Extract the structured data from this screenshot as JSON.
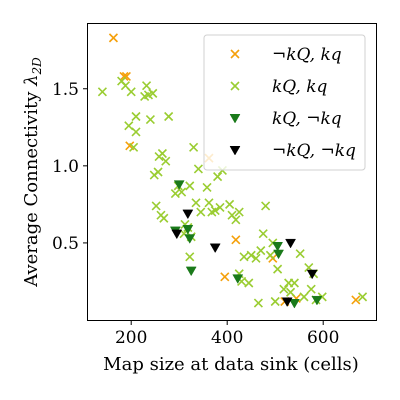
{
  "chart_data": {
    "type": "scatter",
    "xlabel": "Map size at data sink (cells)",
    "ylabel": "Average Connectivity λ2D",
    "xlim": [
      110,
      710
    ],
    "ylim": [
      0.0,
      1.92
    ],
    "xticks": [
      200,
      400,
      600
    ],
    "yticks": [
      0.5,
      1.0,
      1.5
    ],
    "xtick_labels": [
      "200",
      "400",
      "600"
    ],
    "ytick_labels": [
      "0.5",
      "1.0",
      "1.5"
    ],
    "legend_position": "top-right",
    "series": [
      {
        "name": "¬kQ, kq",
        "marker": "x",
        "color": "#f5a00a",
        "points": [
          [
            163,
            1.83
          ],
          [
            185,
            1.58
          ],
          [
            190,
            1.58
          ],
          [
            197,
            1.13
          ],
          [
            362,
            1.05
          ],
          [
            395,
            0.28
          ],
          [
            418,
            0.52
          ],
          [
            495,
            0.4
          ],
          [
            520,
            0.12
          ],
          [
            544,
            0.14
          ],
          [
            668,
            0.13
          ]
        ]
      },
      {
        "name": "kQ, kq",
        "marker": "x",
        "color": "#9acd32",
        "points": [
          [
            140,
            1.48
          ],
          [
            180,
            1.55
          ],
          [
            188,
            1.52
          ],
          [
            200,
            1.48
          ],
          [
            205,
            1.12
          ],
          [
            195,
            1.26
          ],
          [
            210,
            1.32
          ],
          [
            210,
            1.22
          ],
          [
            228,
            1.45
          ],
          [
            232,
            1.52
          ],
          [
            236,
            1.46
          ],
          [
            245,
            1.47
          ],
          [
            240,
            1.3
          ],
          [
            258,
            1.06
          ],
          [
            265,
            1.08
          ],
          [
            272,
            1.03
          ],
          [
            278,
            1.32
          ],
          [
            248,
            0.94
          ],
          [
            256,
            0.96
          ],
          [
            262,
            0.68
          ],
          [
            268,
            0.66
          ],
          [
            252,
            0.74
          ],
          [
            292,
            0.82
          ],
          [
            298,
            0.87
          ],
          [
            305,
            0.83
          ],
          [
            312,
            0.62
          ],
          [
            318,
            0.6
          ],
          [
            322,
            0.87
          ],
          [
            310,
            0.56
          ],
          [
            322,
            0.41
          ],
          [
            325,
            0.54
          ],
          [
            330,
            1.12
          ],
          [
            340,
            0.98
          ],
          [
            335,
            0.76
          ],
          [
            345,
            0.7
          ],
          [
            358,
            0.86
          ],
          [
            362,
            0.76
          ],
          [
            368,
            0.7
          ],
          [
            375,
            0.71
          ],
          [
            380,
            0.93
          ],
          [
            390,
            0.97
          ],
          [
            385,
            0.73
          ],
          [
            405,
            0.75
          ],
          [
            410,
            0.68
          ],
          [
            418,
            0.65
          ],
          [
            425,
            0.7
          ],
          [
            425,
            0.3
          ],
          [
            430,
            0.25
          ],
          [
            435,
            0.41
          ],
          [
            450,
            0.42
          ],
          [
            445,
            0.24
          ],
          [
            460,
            0.4
          ],
          [
            470,
            0.45
          ],
          [
            475,
            0.56
          ],
          [
            480,
            0.74
          ],
          [
            490,
            0.42
          ],
          [
            465,
            0.11
          ],
          [
            495,
            0.5
          ],
          [
            500,
            0.12
          ],
          [
            505,
            0.33
          ],
          [
            518,
            0.2
          ],
          [
            528,
            0.24
          ],
          [
            532,
            0.18
          ],
          [
            540,
            0.24
          ],
          [
            552,
            0.43
          ],
          [
            560,
            0.15
          ],
          [
            570,
            0.34
          ],
          [
            575,
            0.2
          ],
          [
            580,
            0.3
          ],
          [
            585,
            0.13
          ],
          [
            598,
            0.15
          ],
          [
            682,
            0.15
          ]
        ]
      },
      {
        "name": "kQ, ¬kq",
        "marker": "triangle-down",
        "color": "#1a7a1a",
        "points": [
          [
            292,
            0.58
          ],
          [
            300,
            0.88
          ],
          [
            318,
            0.59
          ],
          [
            322,
            0.53
          ],
          [
            325,
            0.32
          ],
          [
            422,
            0.27
          ],
          [
            505,
            0.48
          ],
          [
            507,
            0.43
          ],
          [
            540,
            0.11
          ],
          [
            587,
            0.13
          ]
        ]
      },
      {
        "name": "¬kQ, ¬kq",
        "marker": "triangle-down",
        "color": "#000000",
        "points": [
          [
            295,
            0.56
          ],
          [
            318,
            0.69
          ],
          [
            375,
            0.47
          ],
          [
            525,
            0.12
          ],
          [
            532,
            0.5
          ],
          [
            577,
            0.3
          ]
        ]
      }
    ]
  },
  "legend": {
    "entries": [
      {
        "label": "¬kQ, kq",
        "marker": "x",
        "color": "#f5a00a"
      },
      {
        "label": "kQ, kq",
        "marker": "x",
        "color": "#9acd32"
      },
      {
        "label": "kQ, ¬kq",
        "marker": "triangle-down",
        "color": "#1a7a1a"
      },
      {
        "label": "¬kQ, ¬kq",
        "marker": "triangle-down",
        "color": "#000000"
      }
    ]
  }
}
